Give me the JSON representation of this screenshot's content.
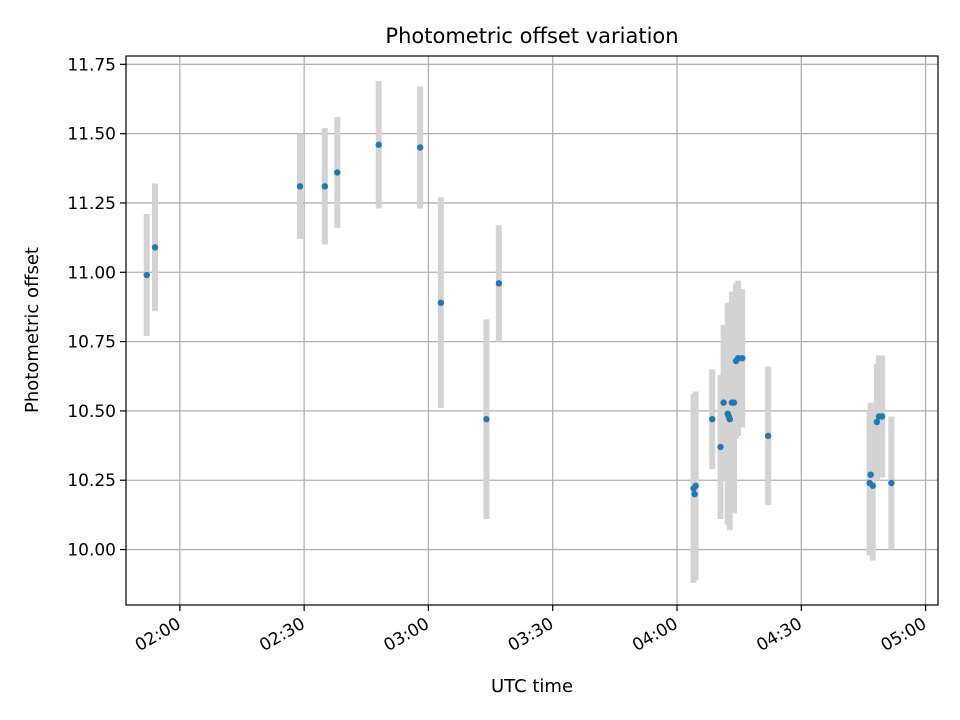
{
  "chart_data": {
    "type": "scatter",
    "title": "Photometric offset variation",
    "xlabel": "UTC time",
    "ylabel": "Photometric offset",
    "xlim": [
      "01:47",
      "05:03"
    ],
    "ylim": [
      9.8,
      11.78
    ],
    "xticks": [
      "02:00",
      "02:30",
      "03:00",
      "03:30",
      "04:00",
      "04:30",
      "05:00"
    ],
    "yticks": [
      "10.00",
      "10.25",
      "10.50",
      "10.75",
      "11.00",
      "11.25",
      "11.50",
      "11.75"
    ],
    "grid": true,
    "colors": {
      "point": "#1f77b4",
      "errorbar": "#d3d3d3",
      "grid": "#b0b0b0"
    },
    "series": [
      {
        "points": [
          {
            "x": "01:52:00",
            "y": 10.99,
            "err": 0.22
          },
          {
            "x": "01:54:00",
            "y": 11.09,
            "err": 0.23
          },
          {
            "x": "02:29:00",
            "y": 11.31,
            "err": 0.19
          },
          {
            "x": "02:35:00",
            "y": 11.31,
            "err": 0.21
          },
          {
            "x": "02:38:00",
            "y": 11.36,
            "err": 0.2
          },
          {
            "x": "02:48:00",
            "y": 11.46,
            "err": 0.23
          },
          {
            "x": "02:58:00",
            "y": 11.45,
            "err": 0.22
          },
          {
            "x": "03:03:00",
            "y": 10.89,
            "err": 0.38
          },
          {
            "x": "03:14:00",
            "y": 10.47,
            "err": 0.36
          },
          {
            "x": "03:17:00",
            "y": 10.96,
            "err": 0.21
          },
          {
            "x": "04:04:00",
            "y": 10.22,
            "err": 0.34
          },
          {
            "x": "04:04:15",
            "y": 10.2,
            "err": 0.3
          },
          {
            "x": "04:04:30",
            "y": 10.23,
            "err": 0.34
          },
          {
            "x": "04:08:30",
            "y": 10.47,
            "err": 0.18
          },
          {
            "x": "04:10:30",
            "y": 10.37,
            "err": 0.26
          },
          {
            "x": "04:11:15",
            "y": 10.53,
            "err": 0.28
          },
          {
            "x": "04:12:15",
            "y": 10.49,
            "err": 0.4
          },
          {
            "x": "04:12:30",
            "y": 10.48,
            "err": 0.39
          },
          {
            "x": "04:12:45",
            "y": 10.47,
            "err": 0.4
          },
          {
            "x": "04:13:15",
            "y": 10.53,
            "err": 0.4
          },
          {
            "x": "04:13:45",
            "y": 10.53,
            "err": 0.4
          },
          {
            "x": "04:14:15",
            "y": 10.68,
            "err": 0.28
          },
          {
            "x": "04:14:45",
            "y": 10.69,
            "err": 0.28
          },
          {
            "x": "04:15:45",
            "y": 10.69,
            "err": 0.25
          },
          {
            "x": "04:22:00",
            "y": 10.41,
            "err": 0.25
          },
          {
            "x": "04:46:30",
            "y": 10.24,
            "err": 0.26
          },
          {
            "x": "04:46:45",
            "y": 10.27,
            "err": 0.26
          },
          {
            "x": "04:47:15",
            "y": 10.23,
            "err": 0.27
          },
          {
            "x": "04:48:15",
            "y": 10.46,
            "err": 0.21
          },
          {
            "x": "04:48:45",
            "y": 10.48,
            "err": 0.22
          },
          {
            "x": "04:49:30",
            "y": 10.48,
            "err": 0.22
          },
          {
            "x": "04:51:45",
            "y": 10.24,
            "err": 0.24
          }
        ]
      }
    ]
  }
}
